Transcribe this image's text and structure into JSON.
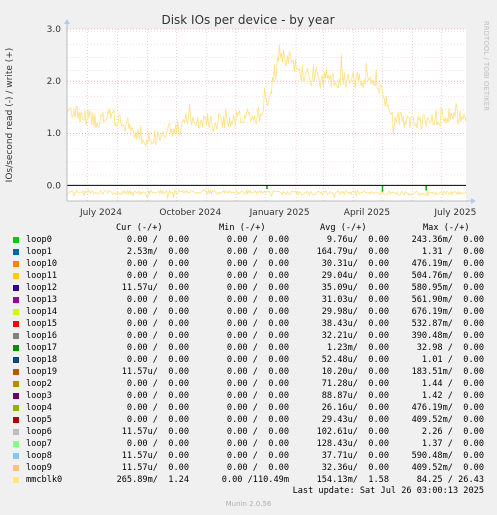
{
  "chart_data": {
    "type": "line",
    "title": "Disk IOs per device - by year",
    "ylabel": "IOs/second read (-) / write (+)",
    "side_label": "RRDTOOL / TOBI OETIKER",
    "ylim": [
      -0.3,
      3.0
    ],
    "y_ticks": [
      "3.0",
      "2.0",
      "1.0",
      "0.0"
    ],
    "x_ticks": [
      "July 2024",
      "October 2024",
      "January 2025",
      "April 2025",
      "July 2025"
    ],
    "x_range": [
      "2024-06-10",
      "2025-07-26"
    ],
    "grid": true,
    "series": [
      {
        "name": "mmcblk0",
        "color": "#ffe082",
        "write": [
          {
            "x": "2024-06-10",
            "y": 1.45
          },
          {
            "x": "2024-06-25",
            "y": 1.35
          },
          {
            "x": "2024-07-10",
            "y": 1.25
          },
          {
            "x": "2024-07-25",
            "y": 1.3
          },
          {
            "x": "2024-08-10",
            "y": 1.15
          },
          {
            "x": "2024-08-25",
            "y": 0.95
          },
          {
            "x": "2024-09-10",
            "y": 0.9
          },
          {
            "x": "2024-09-25",
            "y": 1.05
          },
          {
            "x": "2024-10-10",
            "y": 1.2
          },
          {
            "x": "2024-10-25",
            "y": 1.25
          },
          {
            "x": "2024-11-10",
            "y": 1.2
          },
          {
            "x": "2024-11-25",
            "y": 1.25
          },
          {
            "x": "2024-12-10",
            "y": 1.3
          },
          {
            "x": "2024-12-25",
            "y": 1.35
          },
          {
            "x": "2025-01-05",
            "y": 1.8
          },
          {
            "x": "2025-01-15",
            "y": 2.55
          },
          {
            "x": "2025-01-25",
            "y": 2.4
          },
          {
            "x": "2025-02-10",
            "y": 2.1
          },
          {
            "x": "2025-02-25",
            "y": 2.0
          },
          {
            "x": "2025-03-10",
            "y": 2.0
          },
          {
            "x": "2025-03-25",
            "y": 2.05
          },
          {
            "x": "2025-04-10",
            "y": 2.0
          },
          {
            "x": "2025-04-25",
            "y": 1.95
          },
          {
            "x": "2025-05-10",
            "y": 1.3
          },
          {
            "x": "2025-05-25",
            "y": 1.2
          },
          {
            "x": "2025-06-10",
            "y": 1.25
          },
          {
            "x": "2025-06-25",
            "y": 1.3
          },
          {
            "x": "2025-07-10",
            "y": 1.35
          },
          {
            "x": "2025-07-26",
            "y": 1.3
          }
        ],
        "read": [
          {
            "x": "2024-06-10",
            "y": -0.12
          },
          {
            "x": "2024-08-10",
            "y": -0.14
          },
          {
            "x": "2024-10-10",
            "y": -0.12
          },
          {
            "x": "2024-12-10",
            "y": -0.13
          },
          {
            "x": "2025-02-10",
            "y": -0.15
          },
          {
            "x": "2025-04-10",
            "y": -0.13
          },
          {
            "x": "2025-06-10",
            "y": -0.16
          },
          {
            "x": "2025-07-26",
            "y": -0.14
          }
        ]
      }
    ],
    "read_markers": [
      {
        "x": "2025-01-02",
        "y": -0.07,
        "color": "#00aa00"
      },
      {
        "x": "2025-05-01",
        "y": -0.12,
        "color": "#00aa00"
      },
      {
        "x": "2025-06-15",
        "y": -0.1,
        "color": "#00aa00"
      }
    ]
  },
  "legend": {
    "headers": {
      "cur": "Cur (-/+)",
      "min": "Min (-/+)",
      "avg": "Avg (-/+)",
      "max": "Max (-/+)"
    },
    "rows": [
      {
        "name": "loop0",
        "color": "#00cc00",
        "cur": "0.00 /  0.00",
        "min": "0.00 /  0.00",
        "avg": "9.76u/  0.00",
        "max": "243.36m/  0.00"
      },
      {
        "name": "loop1",
        "color": "#0066b3",
        "cur": "2.53m/  0.00",
        "min": "0.00 /  0.00",
        "avg": "164.79u/  0.00",
        "max": "1.31 /  0.00"
      },
      {
        "name": "loop10",
        "color": "#ff8000",
        "cur": "0.00 /  0.00",
        "min": "0.00 /  0.00",
        "avg": "30.31u/  0.00",
        "max": "476.19m/  0.00"
      },
      {
        "name": "loop11",
        "color": "#ffcc00",
        "cur": "0.00 /  0.00",
        "min": "0.00 /  0.00",
        "avg": "29.04u/  0.00",
        "max": "504.76m/  0.00"
      },
      {
        "name": "loop12",
        "color": "#330099",
        "cur": "11.57u/  0.00",
        "min": "0.00 /  0.00",
        "avg": "35.09u/  0.00",
        "max": "580.95m/  0.00"
      },
      {
        "name": "loop13",
        "color": "#990099",
        "cur": "0.00 /  0.00",
        "min": "0.00 /  0.00",
        "avg": "31.03u/  0.00",
        "max": "561.90m/  0.00"
      },
      {
        "name": "loop14",
        "color": "#ccff00",
        "cur": "0.00 /  0.00",
        "min": "0.00 /  0.00",
        "avg": "29.98u/  0.00",
        "max": "676.19m/  0.00"
      },
      {
        "name": "loop15",
        "color": "#ff0000",
        "cur": "0.00 /  0.00",
        "min": "0.00 /  0.00",
        "avg": "38.43u/  0.00",
        "max": "532.87m/  0.00"
      },
      {
        "name": "loop16",
        "color": "#808080",
        "cur": "0.00 /  0.00",
        "min": "0.00 /  0.00",
        "avg": "32.21u/  0.00",
        "max": "390.48m/  0.00"
      },
      {
        "name": "loop17",
        "color": "#008f00",
        "cur": "0.00 /  0.00",
        "min": "0.00 /  0.00",
        "avg": "1.23m/  0.00",
        "max": "32.98 /  0.00"
      },
      {
        "name": "loop18",
        "color": "#00487d",
        "cur": "0.00 /  0.00",
        "min": "0.00 /  0.00",
        "avg": "52.48u/  0.00",
        "max": "1.01 /  0.00"
      },
      {
        "name": "loop19",
        "color": "#b35a00",
        "cur": "11.57u/  0.00",
        "min": "0.00 /  0.00",
        "avg": "10.20u/  0.00",
        "max": "183.51m/  0.00"
      },
      {
        "name": "loop2",
        "color": "#b38f00",
        "cur": "0.00 /  0.00",
        "min": "0.00 /  0.00",
        "avg": "71.28u/  0.00",
        "max": "1.44 /  0.00"
      },
      {
        "name": "loop3",
        "color": "#6b006b",
        "cur": "0.00 /  0.00",
        "min": "0.00 /  0.00",
        "avg": "88.87u/  0.00",
        "max": "1.42 /  0.00"
      },
      {
        "name": "loop4",
        "color": "#8fb300",
        "cur": "0.00 /  0.00",
        "min": "0.00 /  0.00",
        "avg": "26.16u/  0.00",
        "max": "476.19m/  0.00"
      },
      {
        "name": "loop5",
        "color": "#b30000",
        "cur": "0.00 /  0.00",
        "min": "0.00 /  0.00",
        "avg": "29.43u/  0.00",
        "max": "409.52m/  0.00"
      },
      {
        "name": "loop6",
        "color": "#bebebe",
        "cur": "11.57u/  0.00",
        "min": "0.00 /  0.00",
        "avg": "102.61u/  0.00",
        "max": "2.26 /  0.00"
      },
      {
        "name": "loop7",
        "color": "#80ff80",
        "cur": "0.00 /  0.00",
        "min": "0.00 /  0.00",
        "avg": "128.43u/  0.00",
        "max": "1.37 /  0.00"
      },
      {
        "name": "loop8",
        "color": "#80c9ff",
        "cur": "11.57u/  0.00",
        "min": "0.00 /  0.00",
        "avg": "37.71u/  0.00",
        "max": "590.48m/  0.00"
      },
      {
        "name": "loop9",
        "color": "#ffc080",
        "cur": "11.57u/  0.00",
        "min": "0.00 /  0.00",
        "avg": "32.36u/  0.00",
        "max": "409.52m/  0.00"
      },
      {
        "name": "mmcblk0",
        "color": "#ffe680",
        "cur": "265.89m/  1.24",
        "min": "0.00 /110.49m",
        "avg": "154.13m/  1.58",
        "max": "84.25 / 26.43"
      }
    ]
  },
  "last_update": "Last update: Sat Jul 26 03:00:13 2025",
  "footer_version": "Munin 2.0.56"
}
